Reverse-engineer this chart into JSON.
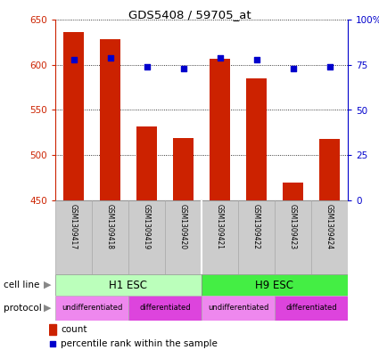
{
  "title": "GDS5408 / 59705_at",
  "samples": [
    "GSM1309417",
    "GSM1309418",
    "GSM1309419",
    "GSM1309420",
    "GSM1309421",
    "GSM1309422",
    "GSM1309423",
    "GSM1309424"
  ],
  "counts": [
    636,
    628,
    532,
    519,
    607,
    585,
    470,
    518
  ],
  "percentile_ranks": [
    78,
    79,
    74,
    73,
    79,
    78,
    73,
    74
  ],
  "ylim_left": [
    450,
    650
  ],
  "ylim_right": [
    0,
    100
  ],
  "yticks_left": [
    450,
    500,
    550,
    600,
    650
  ],
  "yticks_right": [
    0,
    25,
    50,
    75,
    100
  ],
  "bar_color": "#cc2200",
  "dot_color": "#0000cc",
  "bar_bottom": 450,
  "cell_line_groups": [
    {
      "label": "H1 ESC",
      "start": 0,
      "end": 4,
      "color": "#bbffbb"
    },
    {
      "label": "H9 ESC",
      "start": 4,
      "end": 8,
      "color": "#44ee44"
    }
  ],
  "protocol_groups": [
    {
      "label": "undifferentiated",
      "start": 0,
      "end": 2,
      "color": "#ee88ee"
    },
    {
      "label": "differentiated",
      "start": 2,
      "end": 4,
      "color": "#dd44dd"
    },
    {
      "label": "undifferentiated",
      "start": 4,
      "end": 6,
      "color": "#ee88ee"
    },
    {
      "label": "differentiated",
      "start": 6,
      "end": 8,
      "color": "#dd44dd"
    }
  ],
  "legend_count_color": "#cc2200",
  "legend_dot_color": "#0000cc",
  "bg_color": "#ffffff",
  "left_axis_color": "#cc2200",
  "right_axis_color": "#0000cc",
  "sample_box_color": "#cccccc",
  "sample_box_edge": "#aaaaaa"
}
